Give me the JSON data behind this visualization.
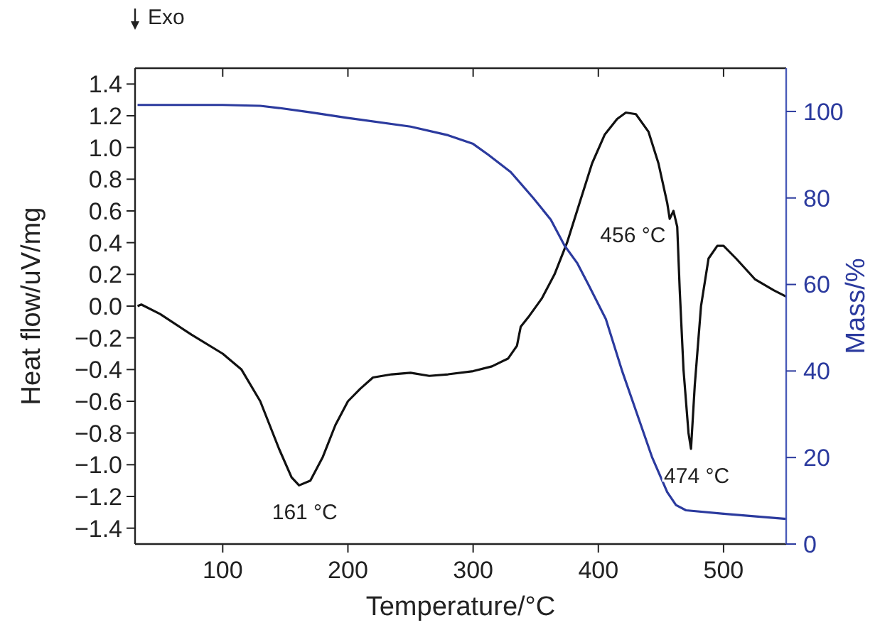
{
  "chart_data": {
    "type": "line",
    "xlabel": "Temperature/°C",
    "ylabel": "Heat flow/uV/mg",
    "y2label": "Mass/%",
    "xlim": [
      30,
      550
    ],
    "xticks": [
      100,
      200,
      300,
      400,
      500
    ],
    "ylim": [
      -1.5,
      1.5
    ],
    "yticks": [
      {
        "value": 1.4,
        "label": "1.4"
      },
      {
        "value": 1.2,
        "label": "1.2"
      },
      {
        "value": 1.0,
        "label": "1.0"
      },
      {
        "value": 0.8,
        "label": "0.8"
      },
      {
        "value": 0.6,
        "label": "0.6"
      },
      {
        "value": 0.4,
        "label": "0.4"
      },
      {
        "value": 0.2,
        "label": "0.2"
      },
      {
        "value": 0,
        "label": "0.0"
      },
      {
        "value": -0.2,
        "label": "−0.2"
      },
      {
        "value": -0.4,
        "label": "−0.4"
      },
      {
        "value": -0.6,
        "label": "−0.6"
      },
      {
        "value": -0.8,
        "label": "−0.8"
      },
      {
        "value": -1.0,
        "label": "−1.0"
      },
      {
        "value": -1.2,
        "label": "−1.2"
      },
      {
        "value": -1.4,
        "label": "−1.4"
      }
    ],
    "y2lim": [
      0,
      110
    ],
    "y2ticks": [
      0,
      20,
      40,
      60,
      80,
      100
    ],
    "grid": false,
    "line_style": "solid",
    "series": [
      {
        "color": "#111111",
        "x": [
          32,
          35,
          50,
          75,
          100,
          115,
          130,
          145,
          155,
          161,
          170,
          180,
          190,
          200,
          210,
          220,
          235,
          250,
          265,
          280,
          300,
          315,
          328,
          335,
          338,
          345,
          355,
          365,
          375,
          385,
          395,
          405,
          415,
          422,
          430,
          440,
          448,
          455,
          457,
          460,
          463,
          465,
          468,
          472,
          474,
          477,
          482,
          488,
          495,
          500,
          510,
          525,
          540,
          550
        ],
        "values": [
          0.0,
          0.01,
          -0.05,
          -0.18,
          -0.3,
          -0.4,
          -0.6,
          -0.9,
          -1.08,
          -1.13,
          -1.1,
          -0.95,
          -0.75,
          -0.6,
          -0.52,
          -0.45,
          -0.43,
          -0.42,
          -0.44,
          -0.43,
          -0.41,
          -0.38,
          -0.33,
          -0.25,
          -0.13,
          -0.06,
          0.05,
          0.2,
          0.4,
          0.65,
          0.9,
          1.08,
          1.18,
          1.22,
          1.21,
          1.1,
          0.9,
          0.65,
          0.55,
          0.6,
          0.5,
          0.1,
          -0.4,
          -0.8,
          -0.9,
          -0.5,
          0.0,
          0.3,
          0.38,
          0.38,
          0.3,
          0.17,
          0.1,
          0.06
        ]
      },
      {
        "color": "#2b3a9e",
        "axis": "y2",
        "x": [
          32,
          100,
          130,
          145,
          170,
          200,
          250,
          280,
          300,
          312,
          330,
          348,
          362,
          373,
          383,
          392,
          406,
          419,
          431,
          443,
          455,
          462,
          470,
          500,
          550
        ],
        "values": [
          101.5,
          101.5,
          101.3,
          100.8,
          99.8,
          98.5,
          96.5,
          94.5,
          92.5,
          90,
          86,
          80,
          75,
          69,
          65,
          60,
          52,
          40,
          30,
          20,
          12,
          9,
          7.8,
          7,
          5.8
        ]
      }
    ],
    "annotations": [
      "Exo",
      {
        "text": "161 °C",
        "x": 161,
        "y": -1.13
      },
      {
        "text": "456 °C",
        "x": 456,
        "y": 0.6
      },
      {
        "text": "474 °C",
        "x": 474,
        "y": -0.9
      }
    ]
  }
}
